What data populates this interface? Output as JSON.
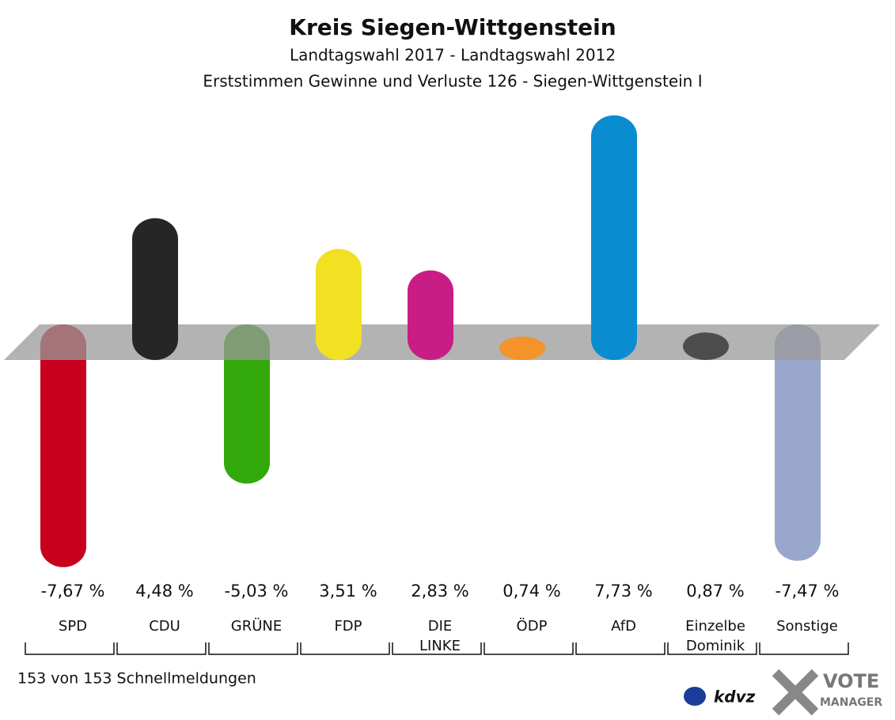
{
  "chart_data": {
    "type": "bar",
    "title": "Kreis Siegen-Wittgenstein",
    "subtitle": "Landtagswahl 2017 - Landtagswahl 2012",
    "subtitle2": "Erststimmen Gewinne und Verluste 126 - Siegen-Wittgenstein I",
    "categories": [
      "SPD",
      "CDU",
      "GRÜNE",
      "FDP",
      "DIE\nLINKE",
      "ÖDP",
      "AfD",
      "Einzelbe\nDominik",
      "Sonstige"
    ],
    "values": [
      -7.67,
      4.48,
      -5.03,
      3.51,
      2.83,
      0.74,
      7.73,
      0.87,
      -7.47
    ],
    "value_labels": [
      "-7,67 %",
      "4,48 %",
      "-5,03 %",
      "3,51 %",
      "2,83 %",
      "0,74 %",
      "7,73 %",
      "0,87 %",
      "-7,47 %"
    ],
    "colors": [
      "#c8001e",
      "#262626",
      "#33a80a",
      "#f2e022",
      "#c91d86",
      "#f4932a",
      "#0a8cd0",
      "#4d4d4d",
      "#9aa7cc"
    ],
    "footer": "153 von 153 Schnellmeldungen",
    "logo_texts": [
      "kdvz",
      "VOTE",
      "MANAGER"
    ]
  }
}
